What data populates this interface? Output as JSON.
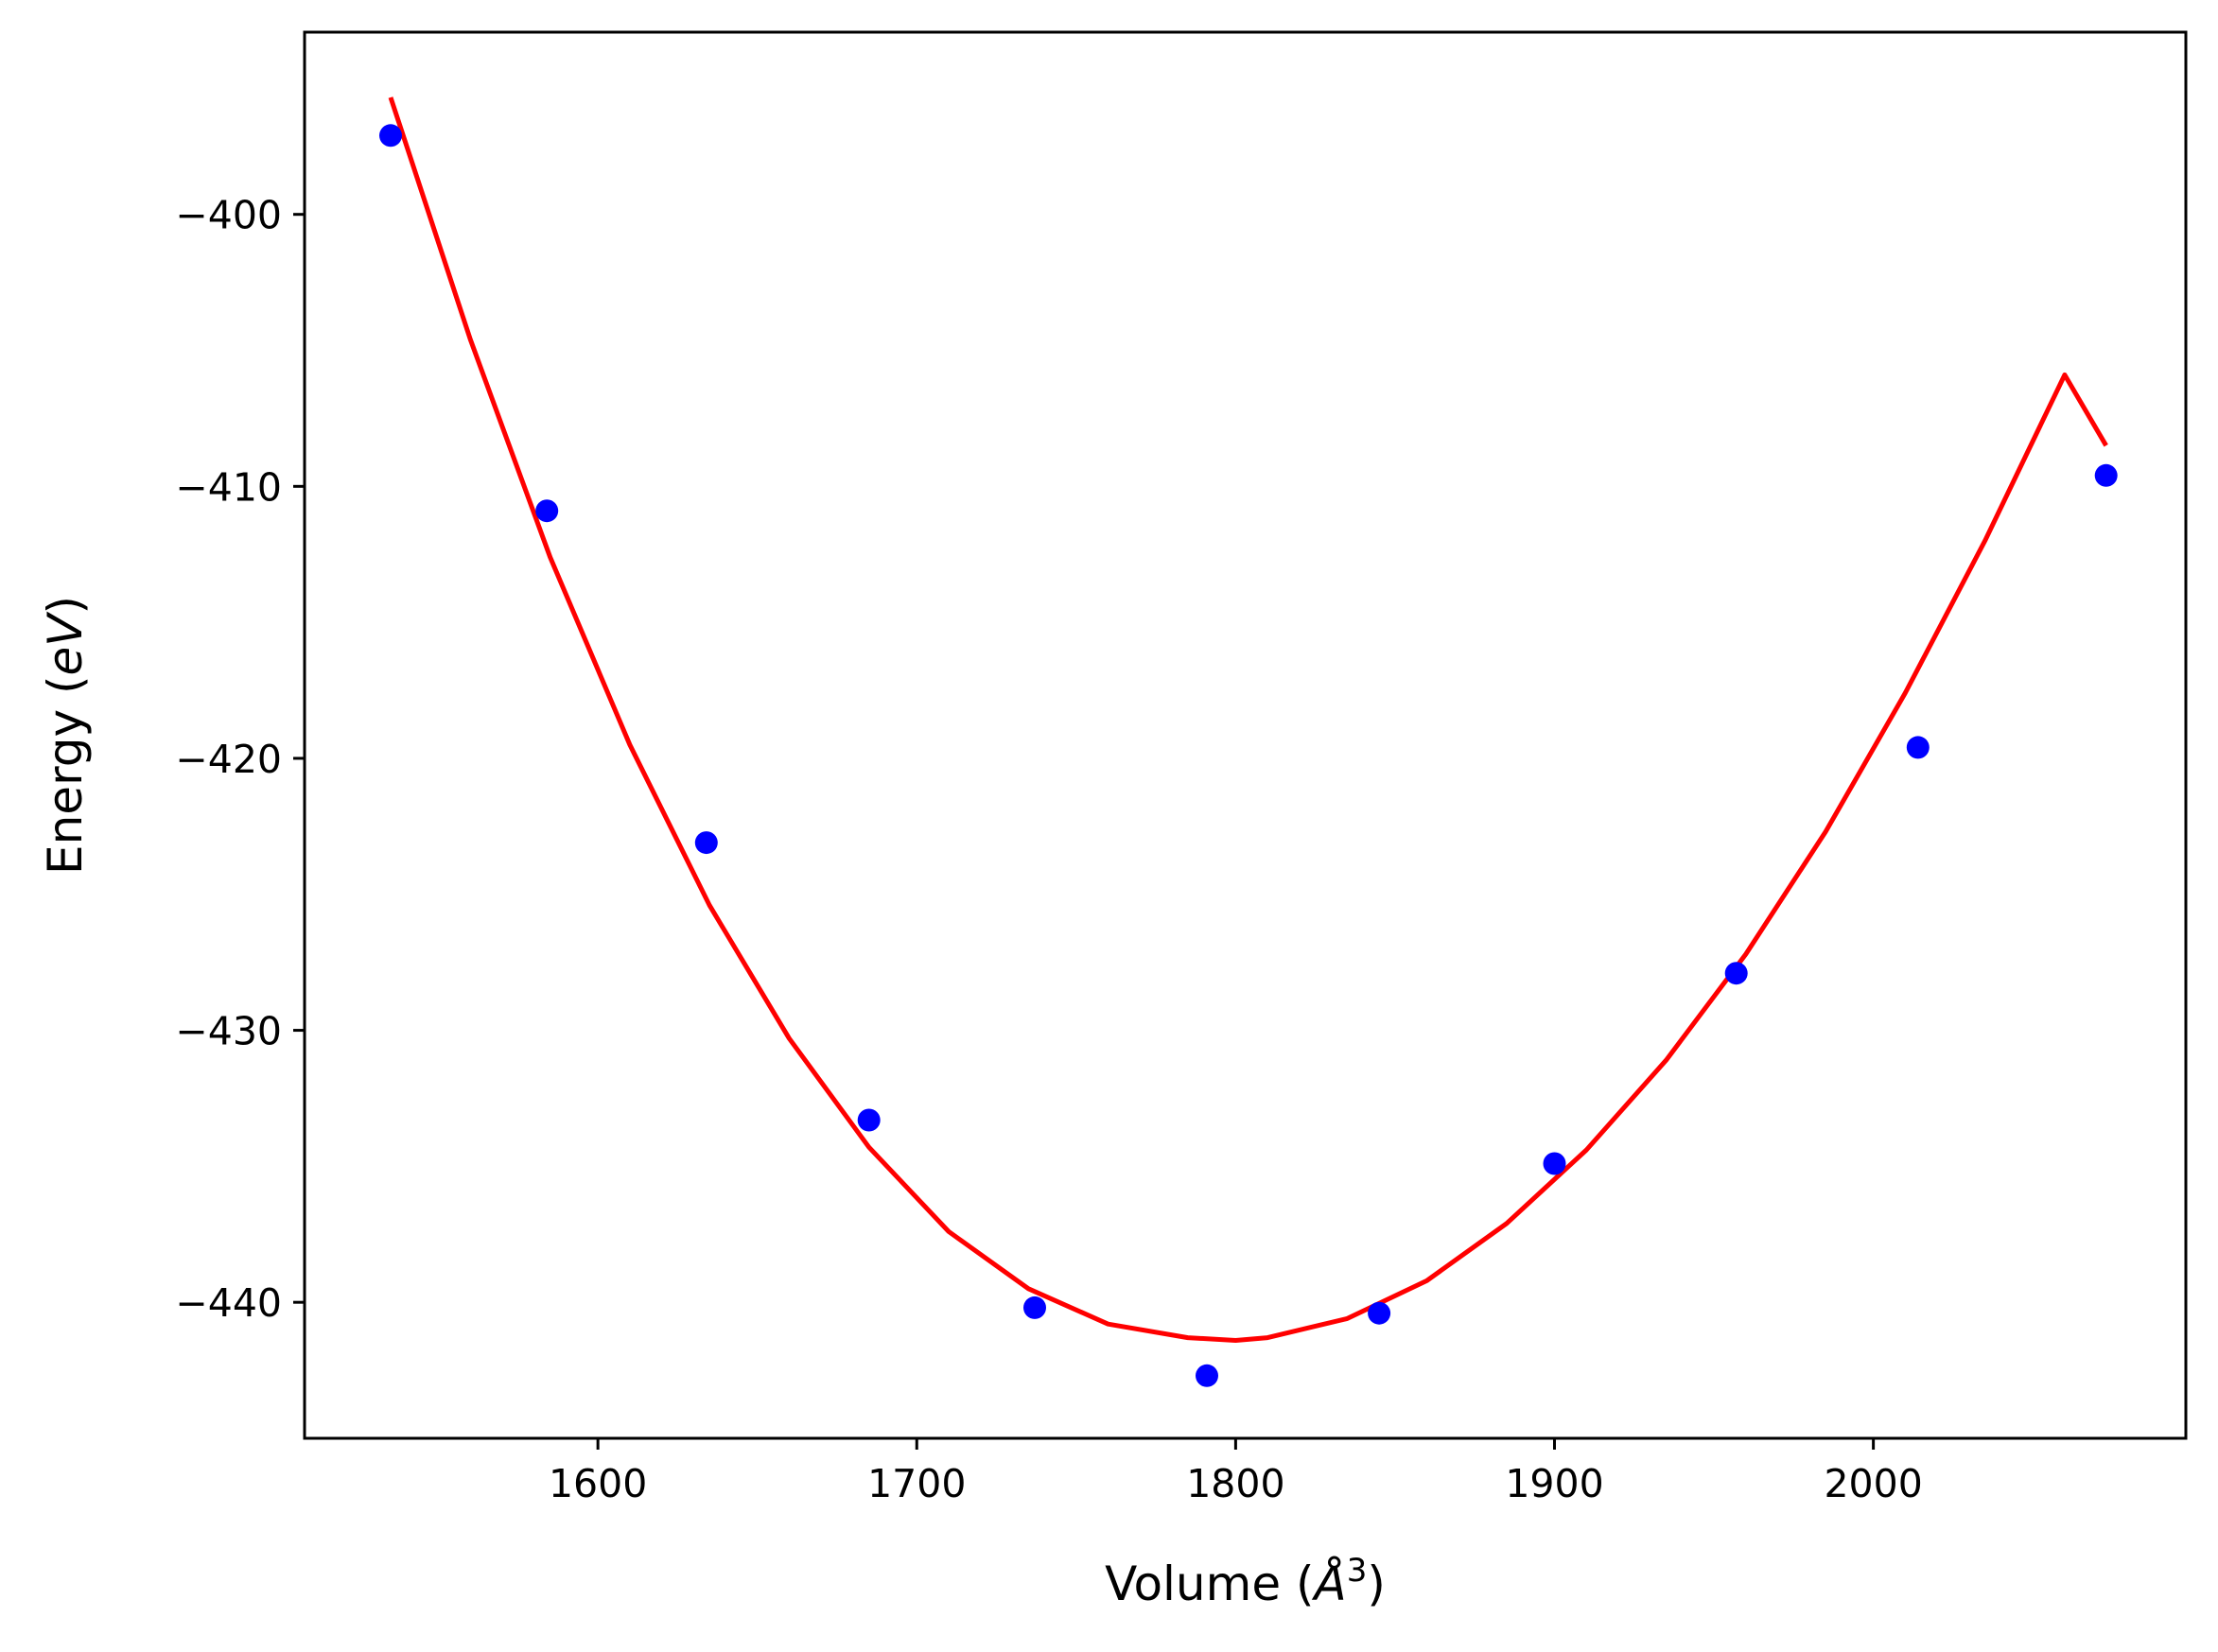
{
  "chart_data": {
    "type": "scatter",
    "title": "",
    "xlabel_parts": [
      "Volume (",
      "Å",
      "3",
      ")"
    ],
    "ylabel_parts": [
      "Energy (",
      "eV",
      ")"
    ],
    "xlim": [
      1508,
      2098
    ],
    "ylim": [
      -445.0,
      -393.3
    ],
    "xticks": [
      1600,
      1700,
      1800,
      1900,
      2000
    ],
    "xtick_labels": [
      "1600",
      "1700",
      "1800",
      "1900",
      "2000"
    ],
    "yticks": [
      -400,
      -410,
      -420,
      -430,
      -440
    ],
    "ytick_labels": [
      "−400",
      "−410",
      "−420",
      "−430",
      "−440"
    ],
    "grid": false,
    "series": [
      {
        "kind": "points",
        "color": "#0000ff",
        "x": [
          1535,
          1584,
          1634,
          1685,
          1737,
          1791,
          1845,
          1900,
          1957,
          2014,
          2073
        ],
        "y": [
          -397.1,
          -410.9,
          -423.1,
          -433.3,
          -440.2,
          -442.7,
          -440.4,
          -434.9,
          -427.9,
          -419.6,
          -409.6
        ]
      },
      {
        "kind": "fit-curve",
        "color": "#ff0000",
        "x": [
          1535,
          1560,
          1585,
          1610,
          1635,
          1660,
          1685,
          1710,
          1735,
          1760,
          1785,
          1800,
          1810,
          1835,
          1860,
          1885,
          1910,
          1935,
          1960,
          1985,
          2010,
          2035,
          2060,
          2073
        ],
        "y": [
          -395.7,
          -404.6,
          -412.6,
          -419.5,
          -425.4,
          -430.3,
          -434.3,
          -437.4,
          -439.5,
          -440.8,
          -441.3,
          -441.4,
          -441.3,
          -440.6,
          -439.2,
          -437.1,
          -434.4,
          -431.1,
          -427.2,
          -422.7,
          -417.6,
          -412.0,
          -405.9,
          -408.5
        ]
      }
    ]
  }
}
